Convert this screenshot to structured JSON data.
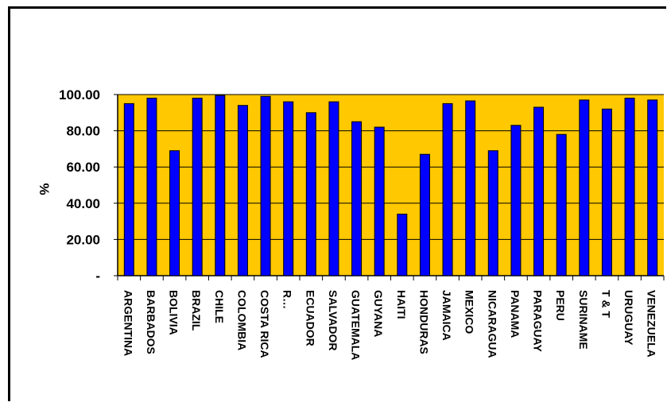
{
  "chart_data": {
    "type": "bar",
    "ylabel": "%",
    "ylim": [
      0,
      100
    ],
    "yticks": [
      "-",
      "20.00",
      "40.00",
      "60.00",
      "80.00",
      "100.00"
    ],
    "categories": [
      "ARGENTINA",
      "BARBADOS",
      "BOLIVIA",
      "BRAZIL",
      "CHILE",
      "COLOMBIA",
      "COSTA RICA",
      "R…",
      "ECUADOR",
      "SALVADOR",
      "GUATEMALA",
      "GUYANA",
      "HAITI",
      "HONDURAS",
      "JAMAICA",
      "MEXICO",
      "NICARAGUA",
      "PANAMA",
      "PARAGUAY",
      "PERU",
      "SURINAME",
      "T & T",
      "URUGUAY",
      "VENEZUELA"
    ],
    "values": [
      95,
      98,
      69,
      98,
      99.5,
      94,
      99,
      96,
      90,
      96,
      85,
      82,
      34,
      67,
      95,
      96.5,
      69,
      83,
      93,
      78,
      97,
      92,
      98,
      97
    ],
    "colors": {
      "plot_bg": "#FFC800",
      "bar": "#0000FF",
      "bar_edge": "#000000",
      "grid": "#000000"
    },
    "grid": true
  }
}
